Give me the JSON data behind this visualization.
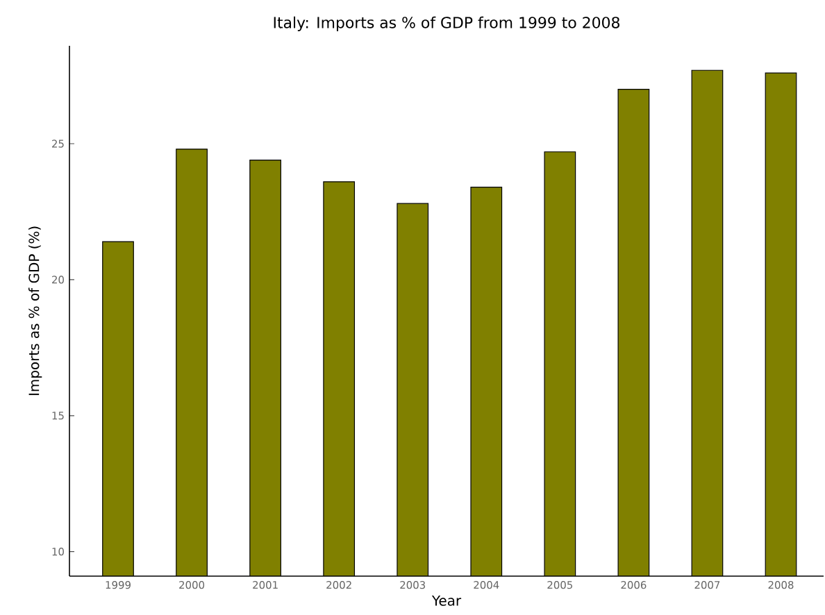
{
  "chart_data": {
    "type": "bar",
    "title": "Italy: Imports as % of GDP from 1999 to 2008",
    "xlabel": "Year",
    "ylabel": "Imports as % of GDP (%)",
    "categories": [
      "1999",
      "2000",
      "2001",
      "2002",
      "2003",
      "2004",
      "2005",
      "2006",
      "2007",
      "2008"
    ],
    "values": [
      21.4,
      24.8,
      24.4,
      23.6,
      22.8,
      23.4,
      24.7,
      27.0,
      27.7,
      27.6
    ],
    "color": "#808000",
    "ylim": [
      9.1,
      28.6
    ],
    "yticks": [
      10,
      15,
      20,
      25
    ],
    "grid": false
  }
}
